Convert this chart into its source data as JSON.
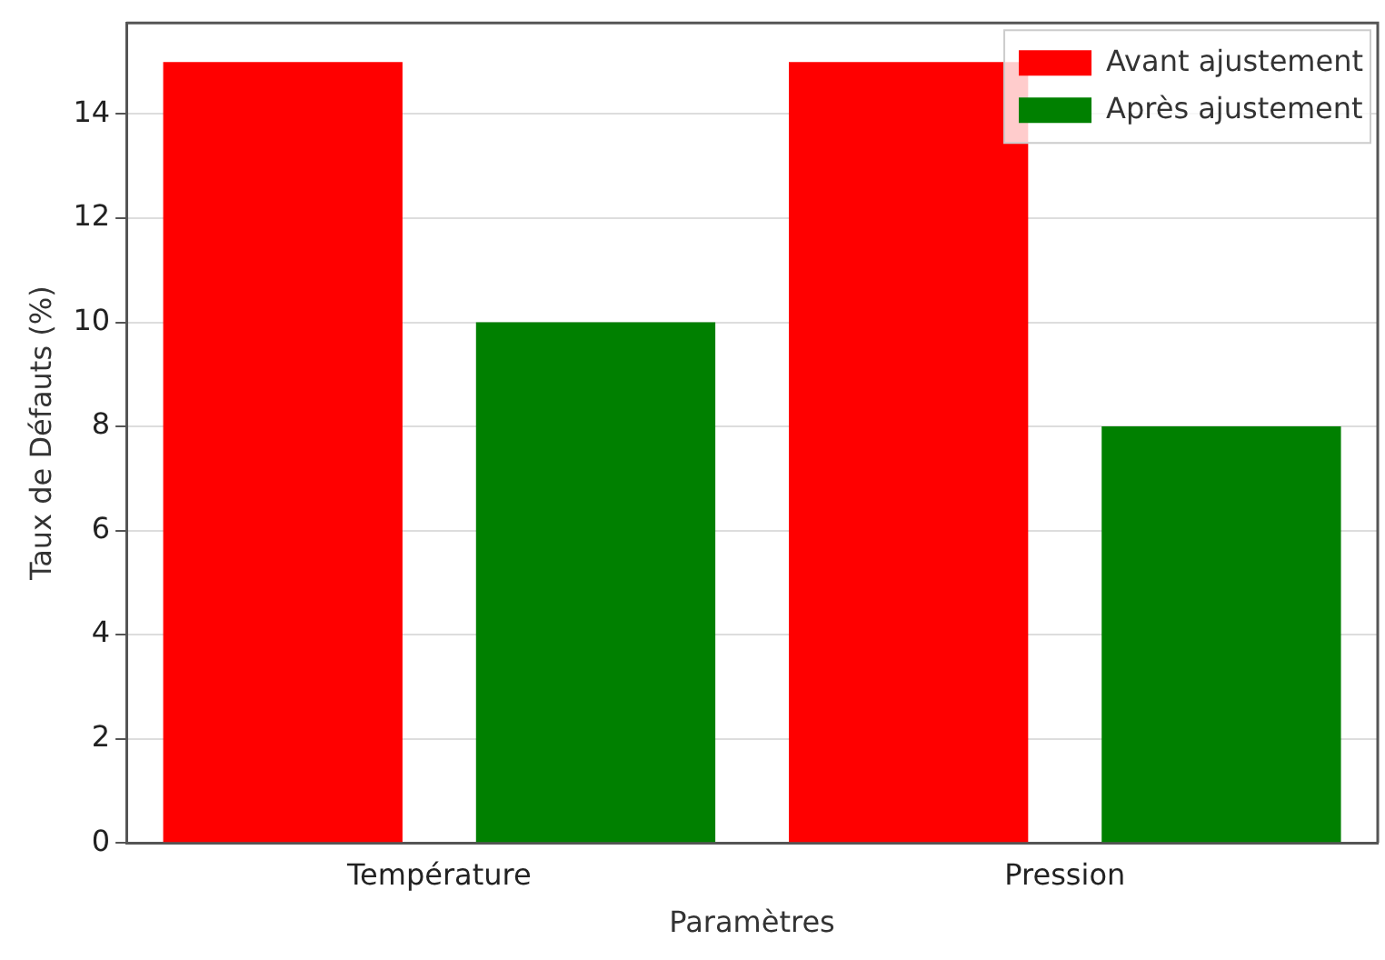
{
  "chart_data": {
    "type": "bar",
    "xlabel": "Paramètres",
    "ylabel": "Taux de Défauts (%)",
    "categories": [
      "Température",
      "Pression"
    ],
    "series": [
      {
        "name": "Avant ajustement",
        "color": "#ff0000",
        "values": [
          15,
          15
        ]
      },
      {
        "name": "Après ajustement",
        "color": "#008000",
        "values": [
          10,
          8
        ]
      }
    ],
    "ylim": [
      0,
      15.75
    ],
    "yticks": [
      0,
      2,
      4,
      6,
      8,
      10,
      12,
      14
    ],
    "grid": "y",
    "legend": "top right"
  }
}
